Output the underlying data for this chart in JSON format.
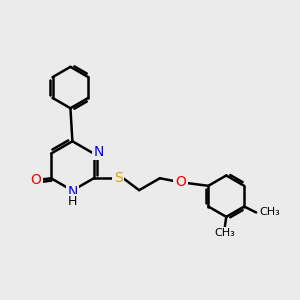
{
  "bg_color": "#ebebeb",
  "atom_colors": {
    "C": "#000000",
    "N": "#0000ff",
    "O": "#ff0000",
    "S": "#ccaa00",
    "H": "#000000"
  },
  "bond_color": "#000000",
  "bond_width": 1.8,
  "font_size": 10,
  "fig_width": 3.0,
  "fig_height": 3.0,
  "dpi": 100,
  "xlim": [
    -0.2,
    7.2
  ],
  "ylim": [
    -0.5,
    6.0
  ]
}
